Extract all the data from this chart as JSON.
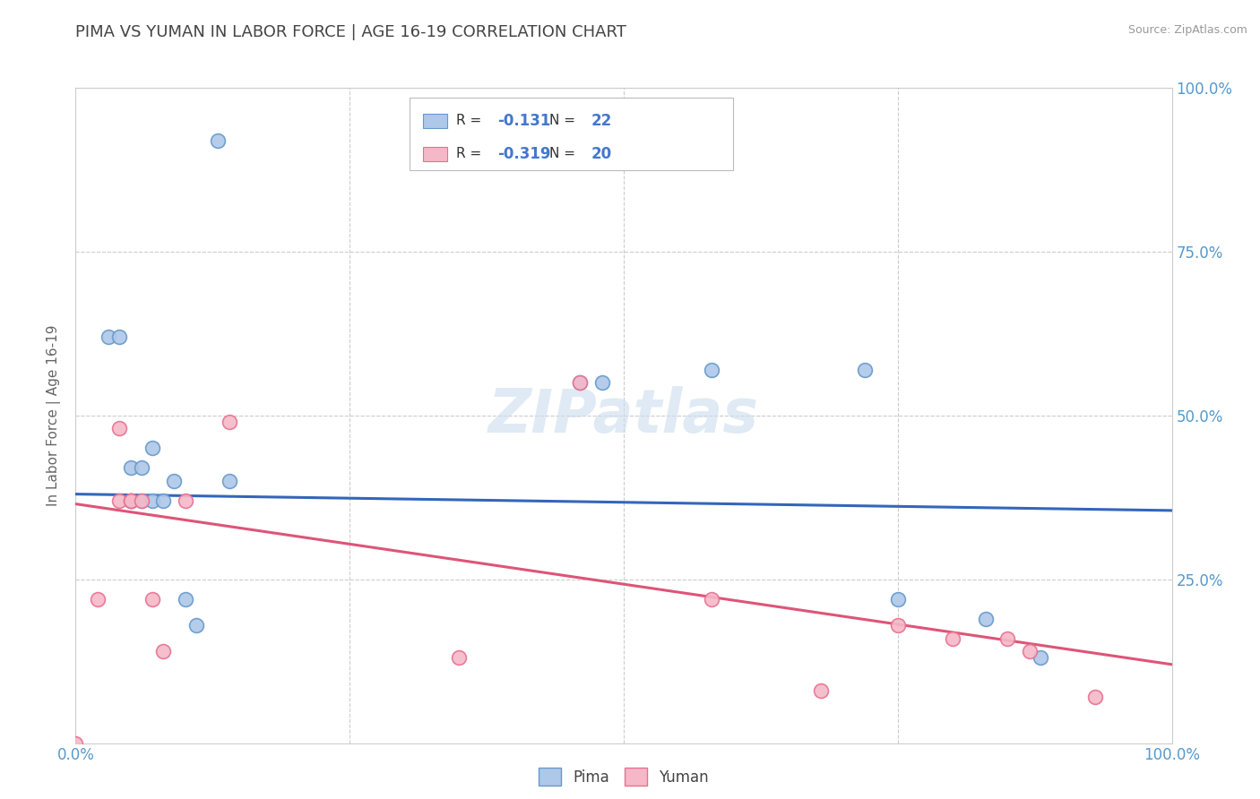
{
  "title": "PIMA VS YUMAN IN LABOR FORCE | AGE 16-19 CORRELATION CHART",
  "source_text": "Source: ZipAtlas.com",
  "ylabel": "In Labor Force | Age 16-19",
  "xlim": [
    0.0,
    1.0
  ],
  "ylim": [
    0.0,
    1.0
  ],
  "xticks": [
    0.0,
    0.25,
    0.5,
    0.75,
    1.0
  ],
  "yticks": [
    0.0,
    0.25,
    0.5,
    0.75,
    1.0
  ],
  "grid_color": "#cccccc",
  "background_color": "#ffffff",
  "plot_background": "#ffffff",
  "pima_color": "#adc8e8",
  "pima_edge_color": "#6699cc",
  "yuman_color": "#f5b8c8",
  "yuman_edge_color": "#e87090",
  "pima_line_color": "#3366bb",
  "yuman_line_color": "#dd5577",
  "R_pima": -0.131,
  "N_pima": 22,
  "R_yuman": -0.319,
  "N_yuman": 20,
  "legend_label_pima": "Pima",
  "legend_label_yuman": "Yuman",
  "title_color": "#444444",
  "axis_label_color": "#666666",
  "tick_label_color": "#5599cc",
  "watermark": "ZIPatlas",
  "pima_x": [
    0.13,
    0.03,
    0.04,
    0.05,
    0.05,
    0.05,
    0.06,
    0.06,
    0.07,
    0.07,
    0.08,
    0.09,
    0.1,
    0.11,
    0.14,
    0.46,
    0.48,
    0.58,
    0.72,
    0.75,
    0.83,
    0.88
  ],
  "pima_y": [
    0.92,
    0.62,
    0.62,
    0.37,
    0.37,
    0.42,
    0.37,
    0.42,
    0.37,
    0.45,
    0.37,
    0.4,
    0.22,
    0.18,
    0.4,
    0.55,
    0.55,
    0.57,
    0.57,
    0.22,
    0.19,
    0.13
  ],
  "yuman_x": [
    0.0,
    0.02,
    0.04,
    0.04,
    0.05,
    0.05,
    0.06,
    0.07,
    0.08,
    0.1,
    0.14,
    0.35,
    0.46,
    0.58,
    0.68,
    0.75,
    0.8,
    0.85,
    0.87,
    0.93
  ],
  "yuman_y": [
    0.0,
    0.22,
    0.37,
    0.48,
    0.37,
    0.37,
    0.37,
    0.22,
    0.14,
    0.37,
    0.49,
    0.13,
    0.55,
    0.22,
    0.08,
    0.18,
    0.16,
    0.16,
    0.14,
    0.07
  ],
  "pima_line_start_y": 0.38,
  "pima_line_end_y": 0.355,
  "yuman_line_start_y": 0.365,
  "yuman_line_end_y": 0.12
}
